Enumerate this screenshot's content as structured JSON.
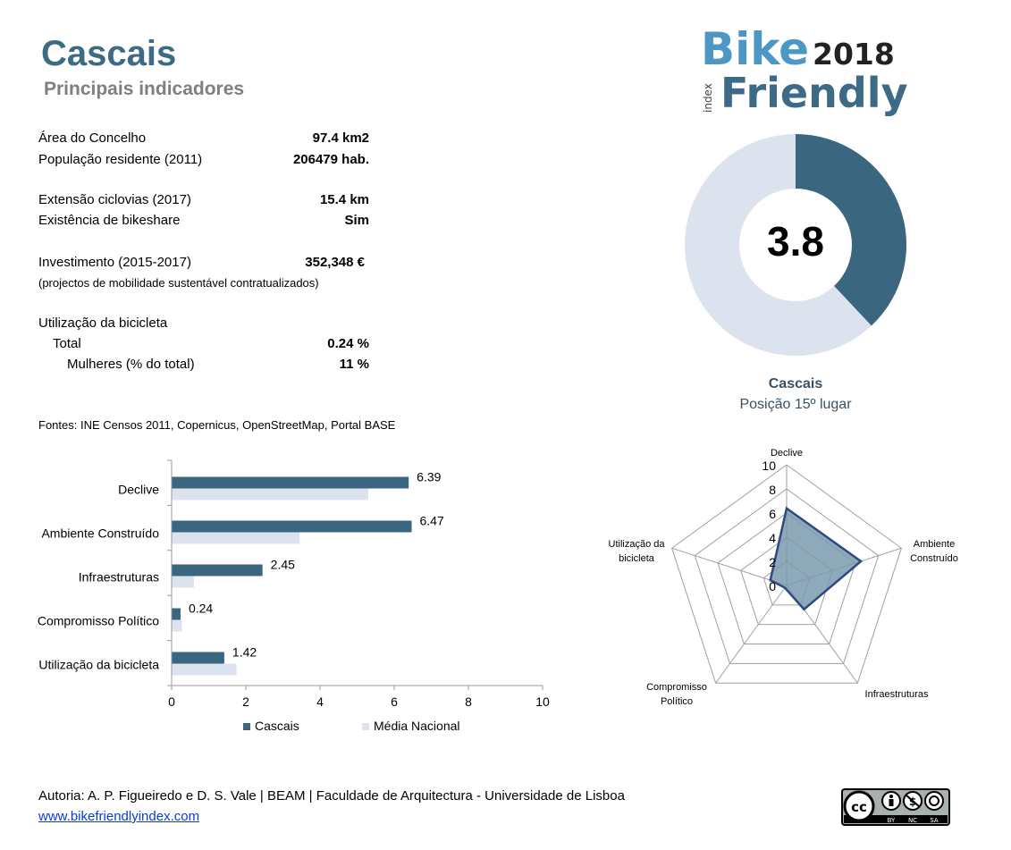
{
  "header": {
    "title": "Cascais",
    "subtitle": "Principais indicadores"
  },
  "logo": {
    "word1": "Bike",
    "year": "2018",
    "word2": "Friendly",
    "small": "index"
  },
  "indicators": {
    "area": {
      "label": "Área do Concelho",
      "value": "97.4 km2"
    },
    "population": {
      "label": "População residente (2011)",
      "value": "206479 hab."
    },
    "cycleways": {
      "label": "Extensão ciclovias (2017)",
      "value": "15.4 km"
    },
    "bikeshare": {
      "label": "Existência de bikeshare",
      "value": "Sim"
    },
    "investment": {
      "label": "Investimento (2015-2017)",
      "value": "352,348 €",
      "note": "(projectos de mobilidade sustentável contratualizados)"
    },
    "usage": {
      "heading": "Utilização da bicicleta",
      "total_label": "Total",
      "total_value": "0.24 %",
      "women_label": "Mulheres (% do total)",
      "women_value": "11 %"
    }
  },
  "sources": "Fontes: INE Censos 2011, Copernicus, OpenStreetMap,  Portal BASE",
  "score": {
    "value": "3.8",
    "fraction": 0.38,
    "fill_color": "#3a6680",
    "rest_color": "#dce3ef",
    "name": "Cascais",
    "position": "Posição 15º lugar"
  },
  "chart_data": [
    {
      "type": "bar",
      "orientation": "horizontal",
      "categories": [
        "Declive",
        "Ambiente Construído",
        "Infraestruturas",
        "Compromisso Político",
        "Utilização da bicicleta"
      ],
      "series": [
        {
          "name": "Cascais",
          "values": [
            6.39,
            6.47,
            2.45,
            0.24,
            1.42
          ],
          "color": "#3a6680",
          "labels": [
            "6.39",
            "6.47",
            "2.45",
            "0.24",
            "1.42"
          ]
        },
        {
          "name": "Média Nacional",
          "values": [
            5.3,
            3.45,
            0.6,
            0.28,
            1.75
          ],
          "color": "#dce3ef"
        }
      ],
      "xlim": [
        0,
        10
      ],
      "xticks": [
        "0",
        "2",
        "4",
        "6",
        "8",
        "10"
      ],
      "legend": "bottom"
    },
    {
      "type": "radar",
      "axes": [
        "Declive",
        "Ambiente Construído",
        "Infraestruturas",
        "Compromisso Político",
        "Utilização da bicicleta"
      ],
      "axis_label_lines": [
        [
          "Declive"
        ],
        [
          "Ambiente",
          "Construído"
        ],
        [
          "Infraestruturas"
        ],
        [
          "Compromisso",
          "Político"
        ],
        [
          "Utilização da",
          "bicicleta"
        ]
      ],
      "series": [
        {
          "name": "Cascais",
          "values": [
            6.39,
            6.47,
            2.45,
            0.24,
            1.42
          ],
          "color": "#2e4a80",
          "fill": "#7a9aad"
        }
      ],
      "rlim": [
        0,
        10
      ],
      "rticks": [
        "0",
        "2",
        "4",
        "6",
        "8",
        "10"
      ]
    }
  ],
  "footer": {
    "author": "Autoria: A. P. Figueiredo e D. S. Vale | BEAM | Faculdade de Arquitectura - Universidade de Lisboa",
    "link": "www.bikefriendlyindex.com",
    "license": {
      "symbols": "cc",
      "text1": "BY",
      "text2": "NC",
      "text3": "SA"
    }
  }
}
